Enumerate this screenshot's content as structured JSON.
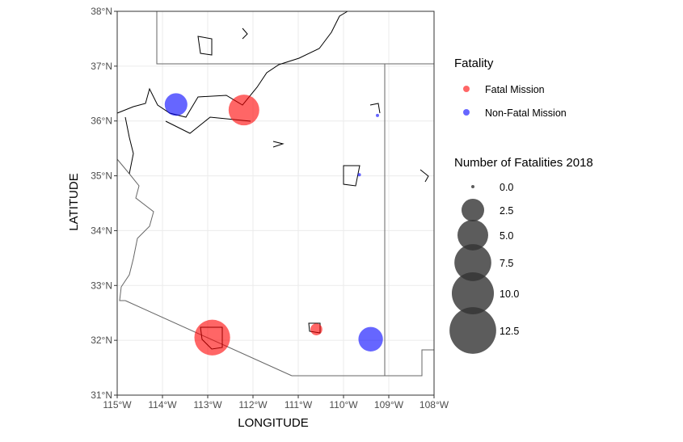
{
  "chart_data": {
    "type": "scatter",
    "xlabel": "LONGITUDE",
    "ylabel": "LATITUDE",
    "xlim": [
      -115,
      -108
    ],
    "ylim": [
      31,
      38
    ],
    "x_ticks": [
      -115,
      -114,
      -113,
      -112,
      -111,
      -110,
      -109,
      -108
    ],
    "y_ticks": [
      31,
      32,
      33,
      34,
      35,
      36,
      37,
      38
    ],
    "x_tick_labels": [
      "115°W",
      "114°W",
      "113°W",
      "112°W",
      "111°W",
      "110°W",
      "109°W",
      "108°W"
    ],
    "y_tick_labels": [
      "31°N",
      "32°N",
      "33°N",
      "34°N",
      "35°N",
      "36°N",
      "37°N",
      "38°N"
    ],
    "grid": true,
    "series": [
      {
        "name": "Fatal Mission",
        "color": "#ff0000",
        "points": [
          {
            "x": -112.2,
            "y": 36.2,
            "fatalities": 5
          },
          {
            "x": -112.9,
            "y": 32.05,
            "fatalities": 7
          },
          {
            "x": -110.6,
            "y": 32.2,
            "fatalities": 0.5
          }
        ]
      },
      {
        "name": "Non-Fatal Mission",
        "color": "#0000ff",
        "points": [
          {
            "x": -113.7,
            "y": 36.3,
            "fatalities": 2.5
          },
          {
            "x": -109.4,
            "y": 32.02,
            "fatalities": 3
          },
          {
            "x": -109.65,
            "y": 35.02,
            "fatalities": 0
          },
          {
            "x": -109.25,
            "y": 36.1,
            "fatalities": 0
          }
        ]
      }
    ],
    "legend_color": {
      "title": "Fatality",
      "items": [
        {
          "label": "Fatal Mission",
          "color": "#ff0000"
        },
        {
          "label": "Non-Fatal Mission",
          "color": "#0000ff"
        }
      ]
    },
    "legend_size": {
      "title": "Number of Fatalities 2018",
      "items": [
        {
          "label": "0.0",
          "value": 0
        },
        {
          "label": "2.5",
          "value": 2.5
        },
        {
          "label": "5.0",
          "value": 5
        },
        {
          "label": "7.5",
          "value": 7.5
        },
        {
          "label": "10.0",
          "value": 10
        },
        {
          "label": "12.5",
          "value": 12.5
        }
      ]
    },
    "legend_position": "right"
  }
}
